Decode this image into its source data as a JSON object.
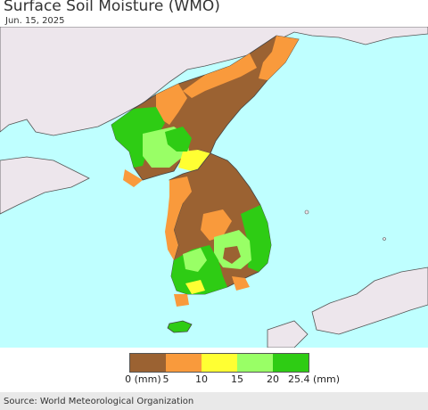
{
  "title": "Surface Soil Moisture (WMO)",
  "date": "Jun. 15, 2025",
  "legend": {
    "colors": [
      "#9b6232",
      "#f99a3c",
      "#ffff33",
      "#99ff66",
      "#2ecc14"
    ],
    "ticks": [
      "0 (mm)",
      "5",
      "10",
      "15",
      "20",
      "25.4 (mm)"
    ]
  },
  "source": "Source: World Meteorological Organization",
  "colors": {
    "sea": "#bfffff",
    "land_outside": "#ede6ec",
    "border": "#444444"
  }
}
